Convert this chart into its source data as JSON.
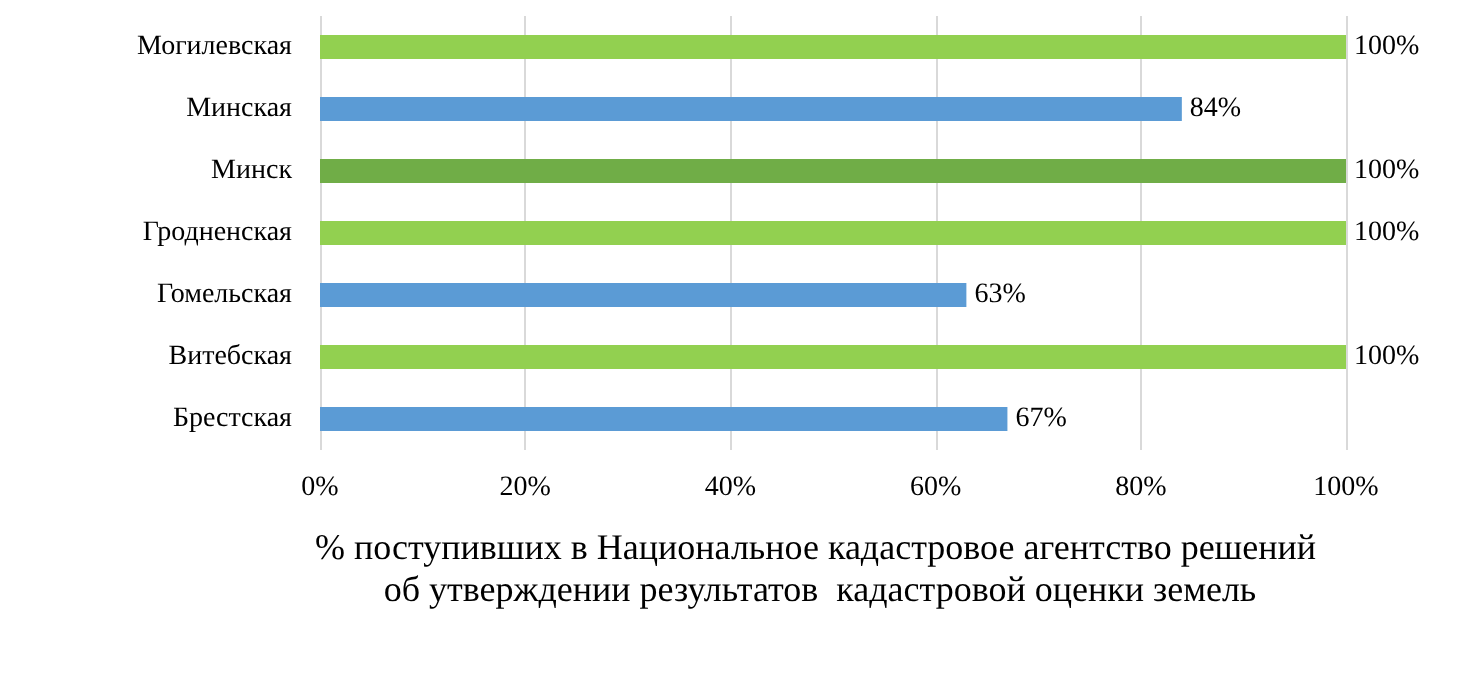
{
  "chart_data": {
    "type": "bar",
    "orientation": "horizontal",
    "categories": [
      "Могилевская",
      "Минская",
      "Минск",
      "Гродненская",
      "Гомельская",
      "Витебская",
      "Брестская"
    ],
    "values": [
      100,
      84,
      100,
      100,
      63,
      100,
      67
    ],
    "colors": [
      "#92d050",
      "#5b9bd5",
      "#70ad47",
      "#92d050",
      "#5b9bd5",
      "#92d050",
      "#5b9bd5"
    ],
    "value_labels": [
      "100%",
      "84%",
      "100%",
      "100%",
      "63%",
      "100%",
      "67%"
    ],
    "xlim": [
      0,
      100
    ],
    "xticks": [
      {
        "value": 0,
        "label": "0%"
      },
      {
        "value": 20,
        "label": "20%"
      },
      {
        "value": 40,
        "label": "40%"
      },
      {
        "value": 60,
        "label": "60%"
      },
      {
        "value": 80,
        "label": "80%"
      },
      {
        "value": 100,
        "label": "100%"
      }
    ],
    "xlabel": "% поступивших в Национальное кадастровое агентство решений об утверждении результатов  кадастровой оценки земель",
    "grid": "x"
  }
}
